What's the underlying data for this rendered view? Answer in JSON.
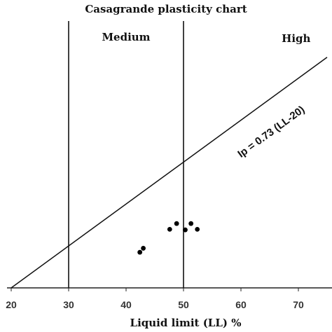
{
  "chart_data": {
    "type": "scatter",
    "title": "Casagrande plasticity chart",
    "xlabel": "Liquid limit (LL) %",
    "ylabel": "",
    "xlim": [
      20,
      75
    ],
    "ylim": [
      0,
      40
    ],
    "xticks": [
      20,
      30,
      40,
      50,
      60,
      70
    ],
    "regions": [
      {
        "label": "Medium",
        "x": 40
      },
      {
        "label": "High",
        "x": 69
      }
    ],
    "vertical_lines": [
      30,
      50
    ],
    "a_line": {
      "label": "Ip = 0.73 (LL-20)",
      "slope": 0.73,
      "intercept_ll": 20
    },
    "points": [
      {
        "x": 42.4,
        "y": 6.2
      },
      {
        "x": 43.0,
        "y": 6.9
      },
      {
        "x": 47.6,
        "y": 10.2
      },
      {
        "x": 48.8,
        "y": 11.2
      },
      {
        "x": 50.3,
        "y": 10.1
      },
      {
        "x": 51.3,
        "y": 11.2
      },
      {
        "x": 52.4,
        "y": 10.2
      }
    ]
  }
}
